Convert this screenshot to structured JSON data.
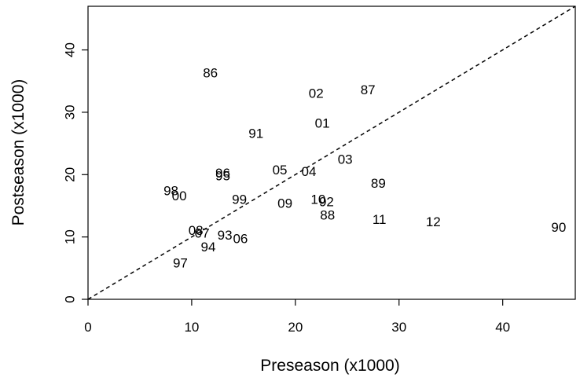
{
  "chart_data": {
    "type": "scatter",
    "title": "",
    "xlabel": "Preseason (x1000)",
    "ylabel": "Postseason (x1000)",
    "xlim": [
      0,
      47
    ],
    "ylim": [
      0,
      47
    ],
    "xticks": [
      0,
      10,
      20,
      30,
      40
    ],
    "yticks": [
      0,
      10,
      20,
      30,
      40
    ],
    "grid": false,
    "reference_line": "y = x (dashed)",
    "points": [
      {
        "label": "86",
        "x": 11.8,
        "y": 36.3
      },
      {
        "label": "02",
        "x": 22.0,
        "y": 33.0
      },
      {
        "label": "87",
        "x": 27.0,
        "y": 33.6
      },
      {
        "label": "01",
        "x": 22.6,
        "y": 28.2
      },
      {
        "label": "91",
        "x": 16.2,
        "y": 26.6
      },
      {
        "label": "03",
        "x": 24.8,
        "y": 22.4
      },
      {
        "label": "05",
        "x": 18.5,
        "y": 20.7
      },
      {
        "label": "04",
        "x": 21.3,
        "y": 20.5
      },
      {
        "label": "96",
        "x": 13.0,
        "y": 20.2
      },
      {
        "label": "95",
        "x": 13.0,
        "y": 19.8
      },
      {
        "label": "89",
        "x": 28.0,
        "y": 18.6
      },
      {
        "label": "98",
        "x": 8.0,
        "y": 17.4
      },
      {
        "label": "00",
        "x": 8.8,
        "y": 16.6
      },
      {
        "label": "99",
        "x": 14.6,
        "y": 16.0
      },
      {
        "label": "10",
        "x": 22.2,
        "y": 16.0
      },
      {
        "label": "92",
        "x": 23.0,
        "y": 15.6
      },
      {
        "label": "09",
        "x": 19.0,
        "y": 15.4
      },
      {
        "label": "88",
        "x": 23.1,
        "y": 13.5
      },
      {
        "label": "11",
        "x": 28.1,
        "y": 12.8
      },
      {
        "label": "12",
        "x": 33.3,
        "y": 12.4
      },
      {
        "label": "90",
        "x": 45.4,
        "y": 11.5
      },
      {
        "label": "08",
        "x": 10.4,
        "y": 11.0
      },
      {
        "label": "07",
        "x": 11.0,
        "y": 10.6
      },
      {
        "label": "93",
        "x": 13.2,
        "y": 10.3
      },
      {
        "label": "06",
        "x": 14.7,
        "y": 9.7
      },
      {
        "label": "94",
        "x": 11.6,
        "y": 8.4
      },
      {
        "label": "97",
        "x": 8.9,
        "y": 5.8
      }
    ]
  }
}
